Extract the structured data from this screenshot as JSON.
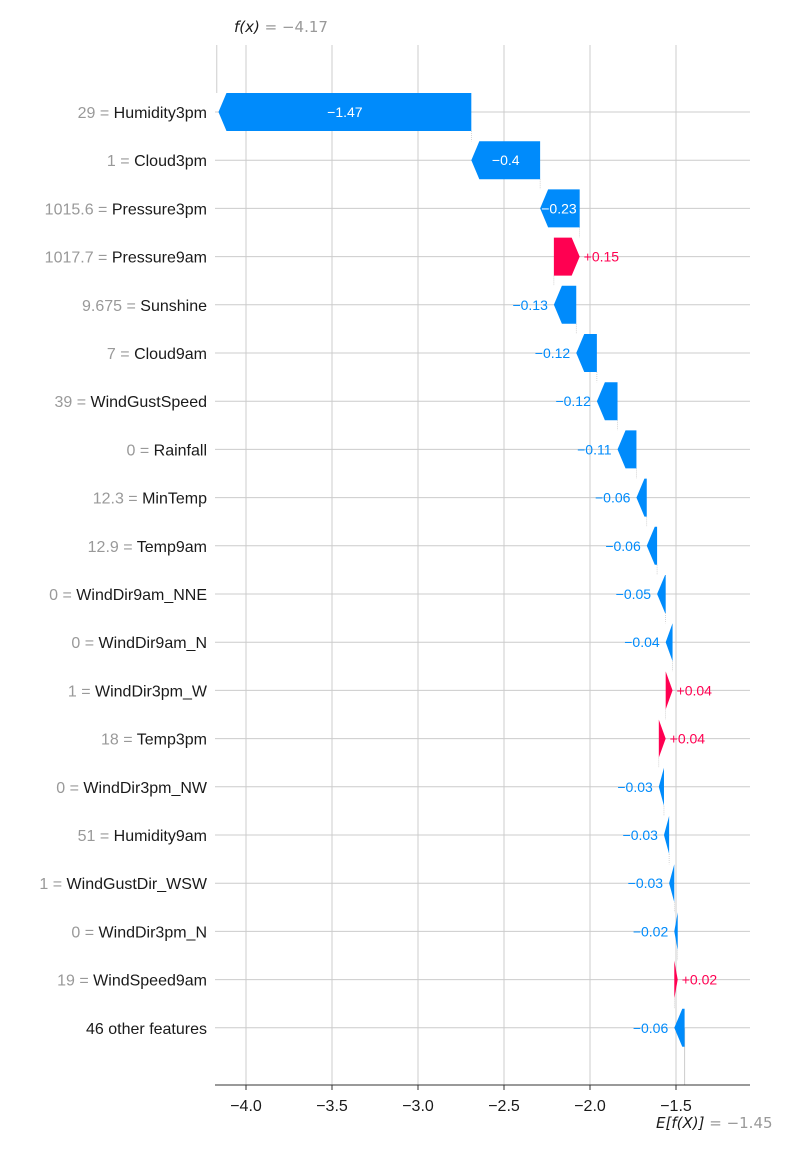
{
  "chart_data": {
    "type": "waterfall",
    "fx": {
      "label": "f(x)",
      "value": "−4.17",
      "numeric": -4.17
    },
    "base": {
      "label": "E[f(X)]",
      "value": "−1.45",
      "numeric": -1.45
    },
    "xlim": [
      -4.35,
      -1.05
    ],
    "xticks": [
      -4.0,
      -3.5,
      -3.0,
      -2.5,
      -2.0,
      -1.5
    ],
    "xtick_labels": [
      "−4.0",
      "−3.5",
      "−3.0",
      "−2.5",
      "−2.0",
      "−1.5"
    ],
    "colors": {
      "positive": "#ff0051",
      "negative": "#008bfb",
      "grid": "#cccccc",
      "muted": "#999999",
      "text": "#1a1a1a"
    },
    "rows": [
      {
        "value_text": "29",
        "feature": "Humidity3pm",
        "shap": -1.47,
        "label": "−1.47"
      },
      {
        "value_text": "1",
        "feature": "Cloud3pm",
        "shap": -0.4,
        "label": "−0.4"
      },
      {
        "value_text": "1015.6",
        "feature": "Pressure3pm",
        "shap": -0.23,
        "label": "−0.23"
      },
      {
        "value_text": "1017.7",
        "feature": "Pressure9am",
        "shap": 0.15,
        "label": "+0.15"
      },
      {
        "value_text": "9.675",
        "feature": "Sunshine",
        "shap": -0.13,
        "label": "−0.13"
      },
      {
        "value_text": "7",
        "feature": "Cloud9am",
        "shap": -0.12,
        "label": "−0.12"
      },
      {
        "value_text": "39",
        "feature": "WindGustSpeed",
        "shap": -0.12,
        "label": "−0.12"
      },
      {
        "value_text": "0",
        "feature": "Rainfall",
        "shap": -0.11,
        "label": "−0.11"
      },
      {
        "value_text": "12.3",
        "feature": "MinTemp",
        "shap": -0.06,
        "label": "−0.06"
      },
      {
        "value_text": "12.9",
        "feature": "Temp9am",
        "shap": -0.06,
        "label": "−0.06"
      },
      {
        "value_text": "0",
        "feature": "WindDir9am_NNE",
        "shap": -0.05,
        "label": "−0.05"
      },
      {
        "value_text": "0",
        "feature": "WindDir9am_N",
        "shap": -0.04,
        "label": "−0.04"
      },
      {
        "value_text": "1",
        "feature": "WindDir3pm_W",
        "shap": 0.04,
        "label": "+0.04"
      },
      {
        "value_text": "18",
        "feature": "Temp3pm",
        "shap": 0.04,
        "label": "+0.04"
      },
      {
        "value_text": "0",
        "feature": "WindDir3pm_NW",
        "shap": -0.03,
        "label": "−0.03"
      },
      {
        "value_text": "51",
        "feature": "Humidity9am",
        "shap": -0.03,
        "label": "−0.03"
      },
      {
        "value_text": "1",
        "feature": "WindGustDir_WSW",
        "shap": -0.03,
        "label": "−0.03"
      },
      {
        "value_text": "0",
        "feature": "WindDir3pm_N",
        "shap": -0.02,
        "label": "−0.02"
      },
      {
        "value_text": "19",
        "feature": "WindSpeed9am",
        "shap": 0.02,
        "label": "+0.02"
      },
      {
        "value_text": "",
        "feature": "46 other features",
        "shap": -0.06,
        "label": "−0.06"
      }
    ]
  }
}
